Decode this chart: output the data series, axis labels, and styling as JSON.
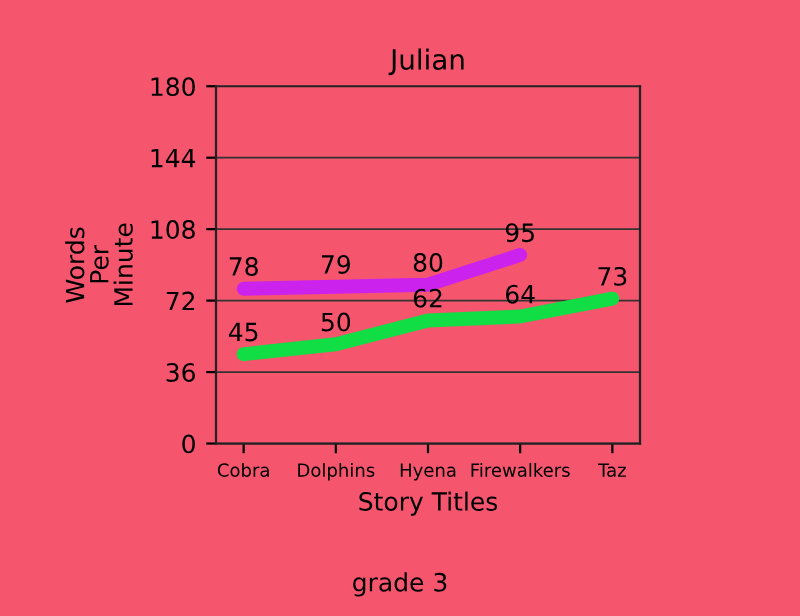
{
  "chart_data": {
    "type": "line",
    "title": "Julian",
    "xlabel": "Story Titles",
    "ylabel": "Words\nPer\nMinute",
    "categories": [
      "Cobra",
      "Dolphins",
      "Hyena",
      "Firewalkers",
      "Taz"
    ],
    "series": [
      {
        "color": "#11dd44",
        "values": [
          45,
          50,
          62,
          64,
          73
        ]
      },
      {
        "color": "#cc22ee",
        "values": [
          78,
          79,
          80,
          95,
          null
        ]
      }
    ],
    "ylim": [
      0,
      180
    ],
    "yticks": [
      0,
      36,
      72,
      108,
      144,
      180
    ],
    "grid": "y",
    "data_labels": true,
    "marker": "none",
    "line_style": "solid",
    "annotations": [
      "grade 3"
    ]
  }
}
